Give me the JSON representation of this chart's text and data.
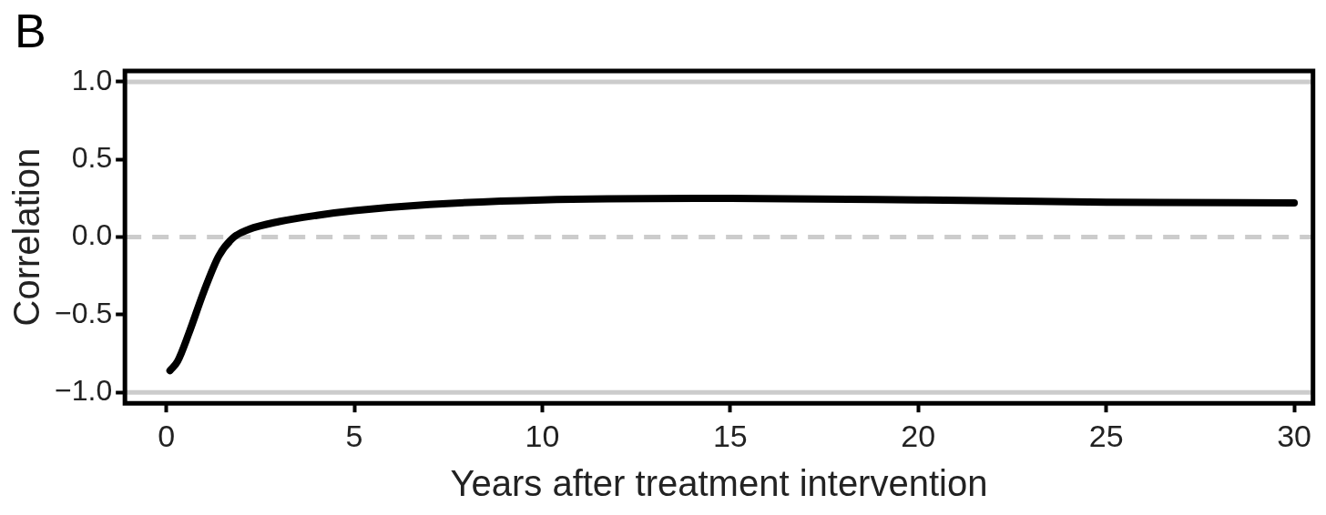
{
  "chart_data": {
    "type": "line",
    "xlabel": "Years after treatment intervention",
    "ylabel": "Correlation",
    "annotations": [
      "B"
    ],
    "x": [
      0.1,
      0.3,
      0.6,
      1.0,
      1.4,
      1.8,
      2.2,
      3,
      4,
      5,
      7,
      10,
      15,
      20,
      25,
      30
    ],
    "series": [
      {
        "color": "#000000",
        "values": [
          -0.86,
          -0.8,
          -0.62,
          -0.35,
          -0.12,
          0.0,
          0.05,
          0.1,
          0.14,
          0.17,
          0.21,
          0.24,
          0.25,
          0.24,
          0.225,
          0.22
        ]
      }
    ],
    "xlim": [
      -1.1,
      30.5
    ],
    "ylim": [
      -1.07,
      1.07
    ],
    "xticks": [
      0,
      5,
      10,
      15,
      20,
      25,
      30
    ],
    "yticks": [
      {
        "value": -1,
        "label": "−1.0"
      },
      {
        "value": -0.5,
        "label": "−0.5"
      },
      {
        "value": 0,
        "label": "0.0"
      },
      {
        "value": 0.5,
        "label": "0.5"
      },
      {
        "value": 1,
        "label": "1.0"
      }
    ],
    "ref_lines": [
      {
        "axis": "y",
        "value": 1.0,
        "color": "#cccccc",
        "line_style": "solid"
      },
      {
        "axis": "y",
        "value": -1.0,
        "color": "#cccccc",
        "line_style": "solid"
      },
      {
        "axis": "y",
        "value": 0.0,
        "color": "#cccccc",
        "line_style": "dashed"
      }
    ],
    "grid": false,
    "legend": false,
    "marker": "none",
    "line_style": "solid"
  }
}
